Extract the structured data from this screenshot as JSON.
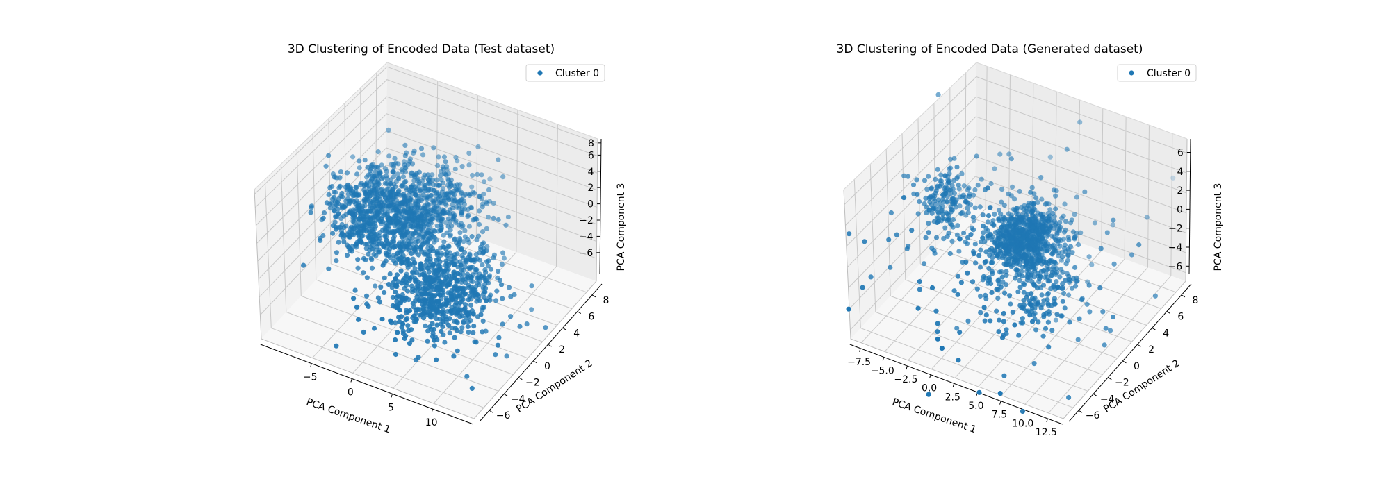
{
  "figure": {
    "panels": [
      {
        "title": "3D Clustering of Encoded Data (Test dataset)",
        "legend": {
          "label": "Cluster 0",
          "placement": "top-right"
        },
        "x_label": "PCA Component 1",
        "y_label": "PCA Component 2",
        "z_label": "PCA Component 3",
        "x_ticks": [
          "−5",
          "0",
          "5",
          "10"
        ],
        "y_ticks": [
          "−6",
          "−4",
          "−2",
          "0",
          "2",
          "4",
          "6",
          "8"
        ],
        "z_ticks": [
          "−6",
          "−4",
          "−2",
          "0",
          "2",
          "4",
          "6",
          "8"
        ]
      },
      {
        "title": "3D Clustering of Encoded Data (Generated dataset)",
        "legend": {
          "label": "Cluster 0",
          "placement": "top-right"
        },
        "x_label": "PCA Component 1",
        "y_label": "PCA Component 2",
        "z_label": "PCA Component 3",
        "x_ticks": [
          "−7.5",
          "−5.0",
          "−2.5",
          "0.0",
          "2.5",
          "5.0",
          "7.5",
          "10.0",
          "12.5"
        ],
        "y_ticks": [
          "−6",
          "−4",
          "−2",
          "0",
          "2",
          "4",
          "6",
          "8"
        ],
        "z_ticks": [
          "−6",
          "−4",
          "−2",
          "0",
          "2",
          "4",
          "6"
        ]
      }
    ]
  },
  "chart_data": [
    {
      "type": "scatter",
      "projection": "3d",
      "title": "3D Clustering of Encoded Data (Test dataset)",
      "xlabel": "PCA Component 1",
      "ylabel": "PCA Component 2",
      "zlabel": "PCA Component 3",
      "xlim": [
        -9,
        13
      ],
      "ylim": [
        -7,
        9
      ],
      "zlim": [
        -7,
        8
      ],
      "grid": true,
      "legend": "top-right",
      "color": "#1f77b4",
      "series": [
        {
          "name": "Cluster 0",
          "clusters": [
            {
              "center": [
                -4,
                2,
                0
              ],
              "spread": [
                2.0,
                1.8,
                1.8
              ],
              "count": 700
            },
            {
              "center": [
                1,
                3,
                1
              ],
              "spread": [
                2.2,
                2.0,
                2.0
              ],
              "count": 550
            },
            {
              "center": [
                6,
                -2,
                -1
              ],
              "spread": [
                2.5,
                2.0,
                1.8
              ],
              "count": 700
            }
          ],
          "outliers": [
            {
              "x": -2,
              "y": -6,
              "z": -6
            }
          ]
        }
      ]
    },
    {
      "type": "scatter",
      "projection": "3d",
      "title": "3D Clustering of Encoded Data (Generated dataset)",
      "xlabel": "PCA Component 1",
      "ylabel": "PCA Component 2",
      "zlabel": "PCA Component 3",
      "xlim": [
        -9,
        13
      ],
      "ylim": [
        -7,
        9
      ],
      "zlim": [
        -7,
        7
      ],
      "grid": true,
      "legend": "top-right",
      "color": "#1f77b4",
      "series": [
        {
          "name": "Cluster 0",
          "clusters": [
            {
              "center": [
                -6,
                2,
                0
              ],
              "spread": [
                1.2,
                1.0,
                1.2
              ],
              "count": 150
            },
            {
              "center": [
                2,
                2,
                -1
              ],
              "spread": [
                1.6,
                1.3,
                1.3
              ],
              "count": 750
            },
            {
              "center": [
                6,
                -1,
                -2
              ],
              "spread": [
                1.8,
                1.6,
                1.4
              ],
              "count": 130
            },
            {
              "center": [
                2,
                0,
                -1
              ],
              "spread": [
                5.0,
                4.0,
                3.5
              ],
              "count": 220
            }
          ]
        }
      ]
    }
  ]
}
